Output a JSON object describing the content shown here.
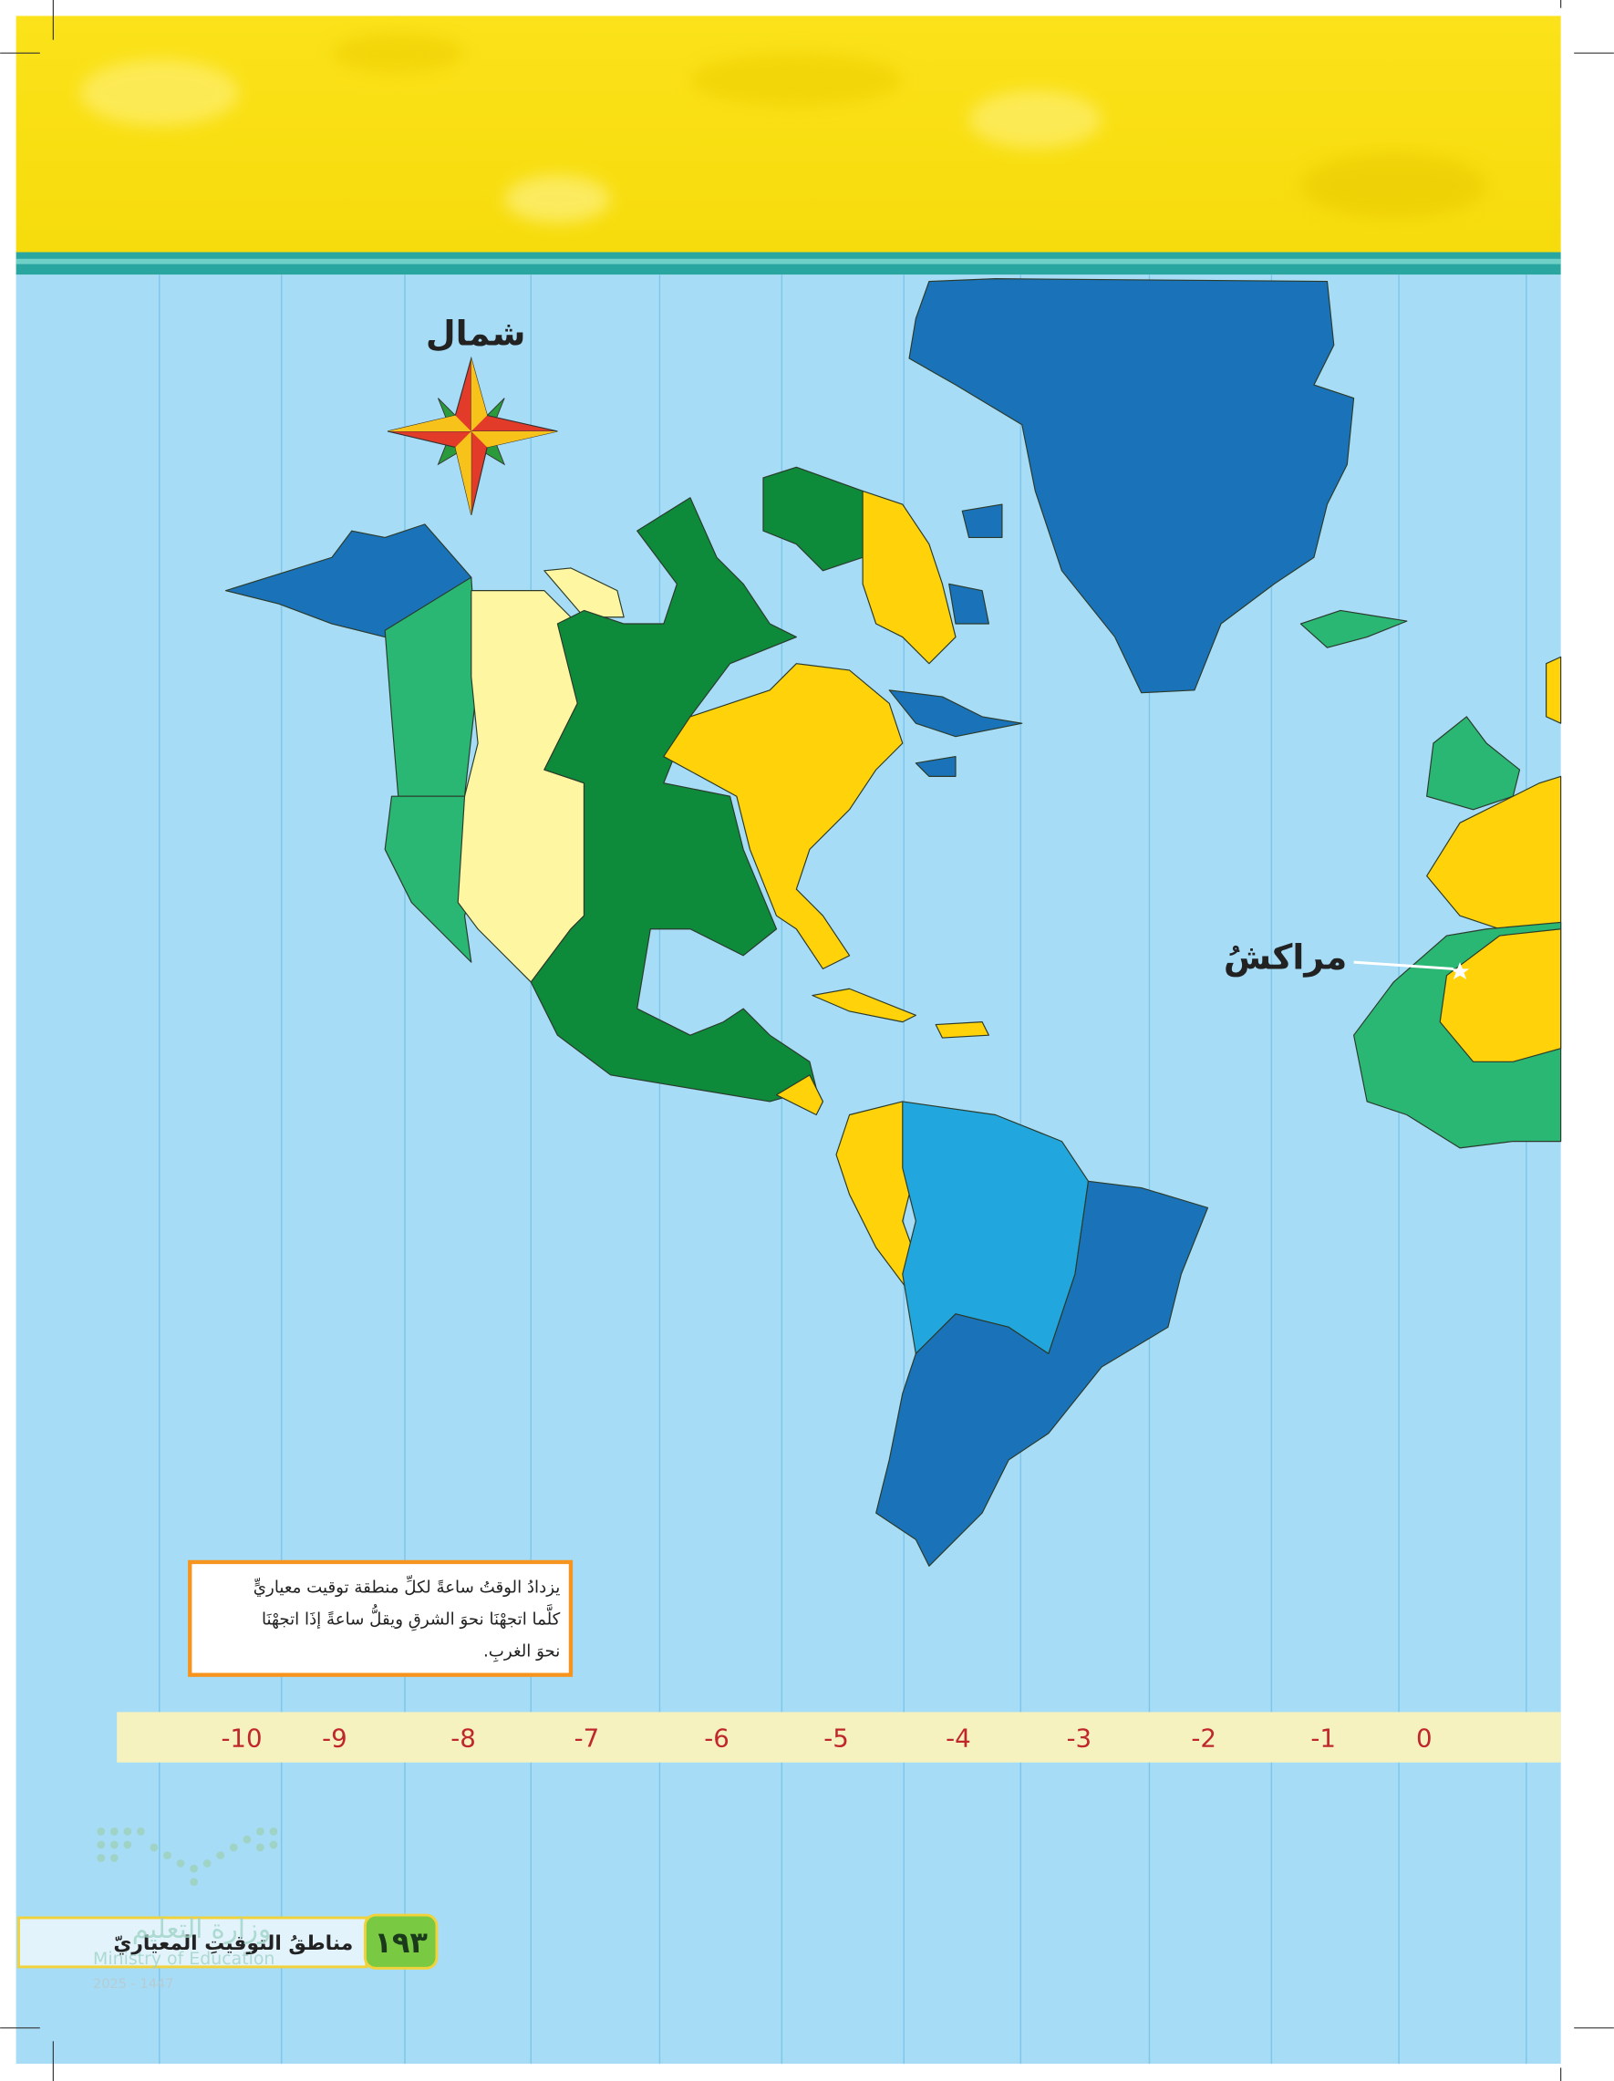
{
  "header": {
    "page_number": "١٩٣",
    "section_title": "مناطقُ التوقيتِ المعياريّ"
  },
  "map": {
    "north_label": "شمال",
    "city_label": "مراكشُ",
    "note": [
      "يزدادُ الوقتُ ساعةً لكلِّ منطقة توقيت معياريٍّ",
      "كلَّما اتجهْنَا نحوَ الشرقِ ويقلُّ ساعةً إذَا اتجهْنَا",
      "نحوَ الغربِ."
    ],
    "time_zones": [
      "-10",
      "-9",
      "-8",
      "-7",
      "-6",
      "-5",
      "-4",
      "-3",
      "-2",
      "-1",
      "0"
    ]
  },
  "watermark": {
    "arabic": "وزارة التعليم",
    "english": "Ministry of Education",
    "year": "2025 - 1447"
  }
}
